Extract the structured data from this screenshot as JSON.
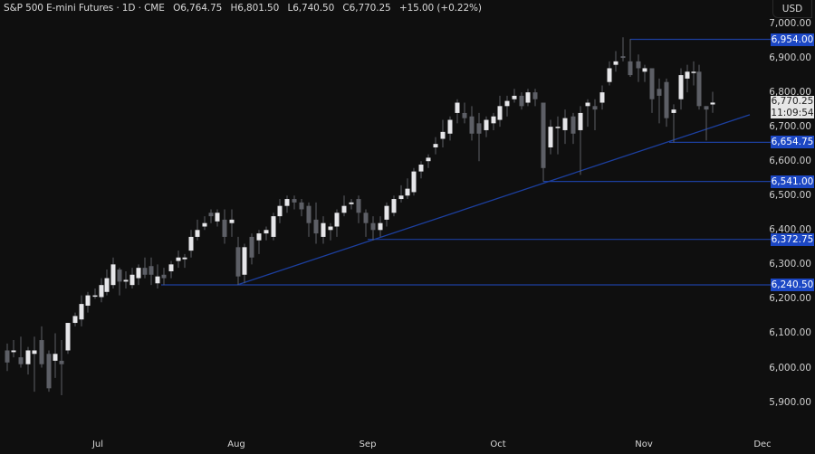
{
  "header": {
    "symbol": "S&P 500 E-mini Futures · 1D · CME",
    "open": "O6,764.75",
    "high": "H6,801.50",
    "low": "L6,740.50",
    "close": "C6,770.25",
    "change": "+15.00 (+0.22%)"
  },
  "currency": "USD",
  "last_price": {
    "value": "6,770.25",
    "countdown": "11:09:54"
  },
  "colors": {
    "background": "#0f0f0f",
    "up_candle": "#e6e6e9",
    "down_candle": "#5d5f66",
    "level_line": "#1c3f9e",
    "level_label_bg": "#1c47c4"
  },
  "chart_data": {
    "type": "candlestick",
    "title": "S&P 500 E-mini Futures · 1D · CME",
    "ylabel": "USD",
    "ylim": [
      5850,
      7025
    ],
    "y_ticks": [
      "7,000.00",
      "6,900.00",
      "6,800.00",
      "6,700.00",
      "6,600.00",
      "6,500.00",
      "6,400.00",
      "6,300.00",
      "6,200.00",
      "6,100.00",
      "6,000.00",
      "5,900.00"
    ],
    "x_ticks": [
      "Jul",
      "Aug",
      "Sep",
      "Oct",
      "Nov",
      "Dec"
    ],
    "grid": false,
    "horizontal_levels": [
      {
        "label": "6,954.00",
        "value": 6954.0
      },
      {
        "label": "6,654.75",
        "value": 6654.75
      },
      {
        "label": "6,541.00",
        "value": 6541.0
      },
      {
        "label": "6,372.75",
        "value": 6372.75
      },
      {
        "label": "6,240.50",
        "value": 6240.5
      }
    ],
    "trendline": {
      "from": {
        "x": 262,
        "price": 6240.5
      },
      "to": {
        "x": 828,
        "price": 6735
      }
    },
    "last": {
      "open": 6764.75,
      "high": 6801.5,
      "low": 6740.5,
      "close": 6770.25,
      "change": 15.0,
      "change_pct": 0.22
    },
    "candles": [
      [
        8,
        6050,
        6015,
        6070,
        5990
      ],
      [
        15,
        6045,
        6050,
        6080,
        6030
      ],
      [
        23,
        6030,
        6010,
        6090,
        6000
      ],
      [
        31,
        6010,
        6050,
        6060,
        5980
      ],
      [
        38,
        6040,
        6050,
        6090,
        5930
      ],
      [
        46,
        6080,
        6010,
        6120,
        6000
      ],
      [
        54,
        6040,
        5940,
        6050,
        5930
      ],
      [
        61,
        6020,
        6040,
        6100,
        5970
      ],
      [
        68,
        6020,
        6010,
        6080,
        5920
      ],
      [
        75,
        6050,
        6130,
        6130,
        6040
      ],
      [
        83,
        6130,
        6150,
        6160,
        6120
      ],
      [
        90,
        6140,
        6185,
        6210,
        6120
      ],
      [
        97,
        6180,
        6210,
        6220,
        6160
      ],
      [
        105,
        6210,
        6210,
        6230,
        6200
      ],
      [
        112,
        6205,
        6240,
        6260,
        6190
      ],
      [
        118,
        6220,
        6260,
        6285,
        6210
      ],
      [
        125,
        6240,
        6300,
        6320,
        6230
      ],
      [
        132,
        6285,
        6250,
        6290,
        6210
      ],
      [
        139,
        6250,
        6255,
        6280,
        6230
      ],
      [
        146,
        6240,
        6270,
        6290,
        6230
      ],
      [
        153,
        6260,
        6290,
        6300,
        6240
      ],
      [
        160,
        6290,
        6270,
        6320,
        6260
      ],
      [
        167,
        6295,
        6270,
        6320,
        6240
      ],
      [
        174,
        6245,
        6265,
        6300,
        6230
      ],
      [
        181,
        6270,
        6260,
        6290,
        6240
      ],
      [
        189,
        6280,
        6300,
        6310,
        6260
      ],
      [
        197,
        6310,
        6320,
        6340,
        6290
      ],
      [
        204,
        6315,
        6320,
        6330,
        6290
      ],
      [
        211,
        6340,
        6380,
        6400,
        6320
      ],
      [
        218,
        6380,
        6400,
        6430,
        6370
      ],
      [
        226,
        6410,
        6420,
        6440,
        6400
      ],
      [
        233,
        6450,
        6440,
        6460,
        6420
      ],
      [
        240,
        6425,
        6450,
        6460,
        6410
      ],
      [
        248,
        6430,
        6380,
        6460,
        6360
      ],
      [
        256,
        6420,
        6430,
        6460,
        6380
      ],
      [
        263,
        6350,
        6265,
        6380,
        6240
      ],
      [
        270,
        6270,
        6350,
        6360,
        6245
      ],
      [
        278,
        6380,
        6320,
        6390,
        6300
      ],
      [
        286,
        6370,
        6390,
        6400,
        6330
      ],
      [
        294,
        6390,
        6400,
        6410,
        6370
      ],
      [
        302,
        6380,
        6440,
        6450,
        6370
      ],
      [
        309,
        6440,
        6470,
        6490,
        6420
      ],
      [
        317,
        6470,
        6490,
        6500,
        6450
      ],
      [
        325,
        6490,
        6480,
        6500,
        6460
      ],
      [
        333,
        6480,
        6460,
        6490,
        6440
      ],
      [
        341,
        6470,
        6420,
        6480,
        6380
      ],
      [
        349,
        6430,
        6390,
        6480,
        6360
      ],
      [
        357,
        6380,
        6420,
        6440,
        6360
      ],
      [
        365,
        6400,
        6410,
        6420,
        6370
      ],
      [
        372,
        6410,
        6450,
        6460,
        6380
      ],
      [
        380,
        6450,
        6470,
        6500,
        6440
      ],
      [
        388,
        6475,
        6480,
        6490,
        6460
      ],
      [
        396,
        6490,
        6450,
        6500,
        6420
      ],
      [
        404,
        6450,
        6420,
        6460,
        6380
      ],
      [
        412,
        6420,
        6400,
        6440,
        6370
      ],
      [
        420,
        6400,
        6420,
        6440,
        6380
      ],
      [
        427,
        6430,
        6470,
        6480,
        6410
      ],
      [
        435,
        6450,
        6490,
        6500,
        6440
      ],
      [
        443,
        6490,
        6500,
        6530,
        6480
      ],
      [
        450,
        6500,
        6520,
        6550,
        6490
      ],
      [
        457,
        6510,
        6570,
        6580,
        6500
      ],
      [
        465,
        6570,
        6590,
        6600,
        6550
      ],
      [
        473,
        6600,
        6610,
        6620,
        6580
      ],
      [
        481,
        6640,
        6650,
        6670,
        6620
      ],
      [
        489,
        6665,
        6685,
        6720,
        6640
      ],
      [
        497,
        6680,
        6720,
        6730,
        6660
      ],
      [
        505,
        6740,
        6770,
        6780,
        6710
      ],
      [
        513,
        6740,
        6725,
        6770,
        6710
      ],
      [
        521,
        6730,
        6680,
        6760,
        6660
      ],
      [
        529,
        6710,
        6680,
        6740,
        6600
      ],
      [
        537,
        6690,
        6720,
        6730,
        6670
      ],
      [
        545,
        6710,
        6730,
        6740,
        6690
      ],
      [
        552,
        6720,
        6760,
        6790,
        6700
      ],
      [
        560,
        6760,
        6775,
        6790,
        6730
      ],
      [
        568,
        6780,
        6790,
        6810,
        6770
      ],
      [
        576,
        6790,
        6760,
        6800,
        6750
      ],
      [
        583,
        6770,
        6800,
        6810,
        6760
      ],
      [
        591,
        6800,
        6780,
        6810,
        6760
      ],
      [
        600,
        6770,
        6580,
        6770,
        6541
      ],
      [
        608,
        6640,
        6700,
        6720,
        6620
      ],
      [
        616,
        6700,
        6700,
        6730,
        6620
      ],
      [
        624,
        6690,
        6725,
        6750,
        6650
      ],
      [
        633,
        6730,
        6680,
        6740,
        6650
      ],
      [
        641,
        6690,
        6740,
        6760,
        6560
      ],
      [
        649,
        6760,
        6770,
        6780,
        6700
      ],
      [
        657,
        6760,
        6750,
        6780,
        6690
      ],
      [
        665,
        6770,
        6800,
        6820,
        6750
      ],
      [
        673,
        6830,
        6870,
        6890,
        6820
      ],
      [
        680,
        6880,
        6890,
        6920,
        6860
      ],
      [
        688,
        6905,
        6900,
        6960,
        6890
      ],
      [
        696,
        6890,
        6850,
        6955,
        6845
      ],
      [
        705,
        6890,
        6870,
        6910,
        6830
      ],
      [
        712,
        6860,
        6870,
        6880,
        6830
      ],
      [
        720,
        6870,
        6780,
        6870,
        6740
      ],
      [
        728,
        6810,
        6790,
        6840,
        6710
      ],
      [
        736,
        6830,
        6725,
        6840,
        6700
      ],
      [
        744,
        6740,
        6750,
        6765,
        6654
      ],
      [
        752,
        6780,
        6850,
        6870,
        6750
      ],
      [
        759,
        6840,
        6860,
        6880,
        6800
      ],
      [
        766,
        6860,
        6860,
        6890,
        6820
      ],
      [
        772,
        6860,
        6760,
        6880,
        6750
      ],
      [
        780,
        6760,
        6750,
        6760,
        6660
      ],
      [
        787,
        6764.75,
        6770.25,
        6801.5,
        6740.5
      ]
    ]
  }
}
